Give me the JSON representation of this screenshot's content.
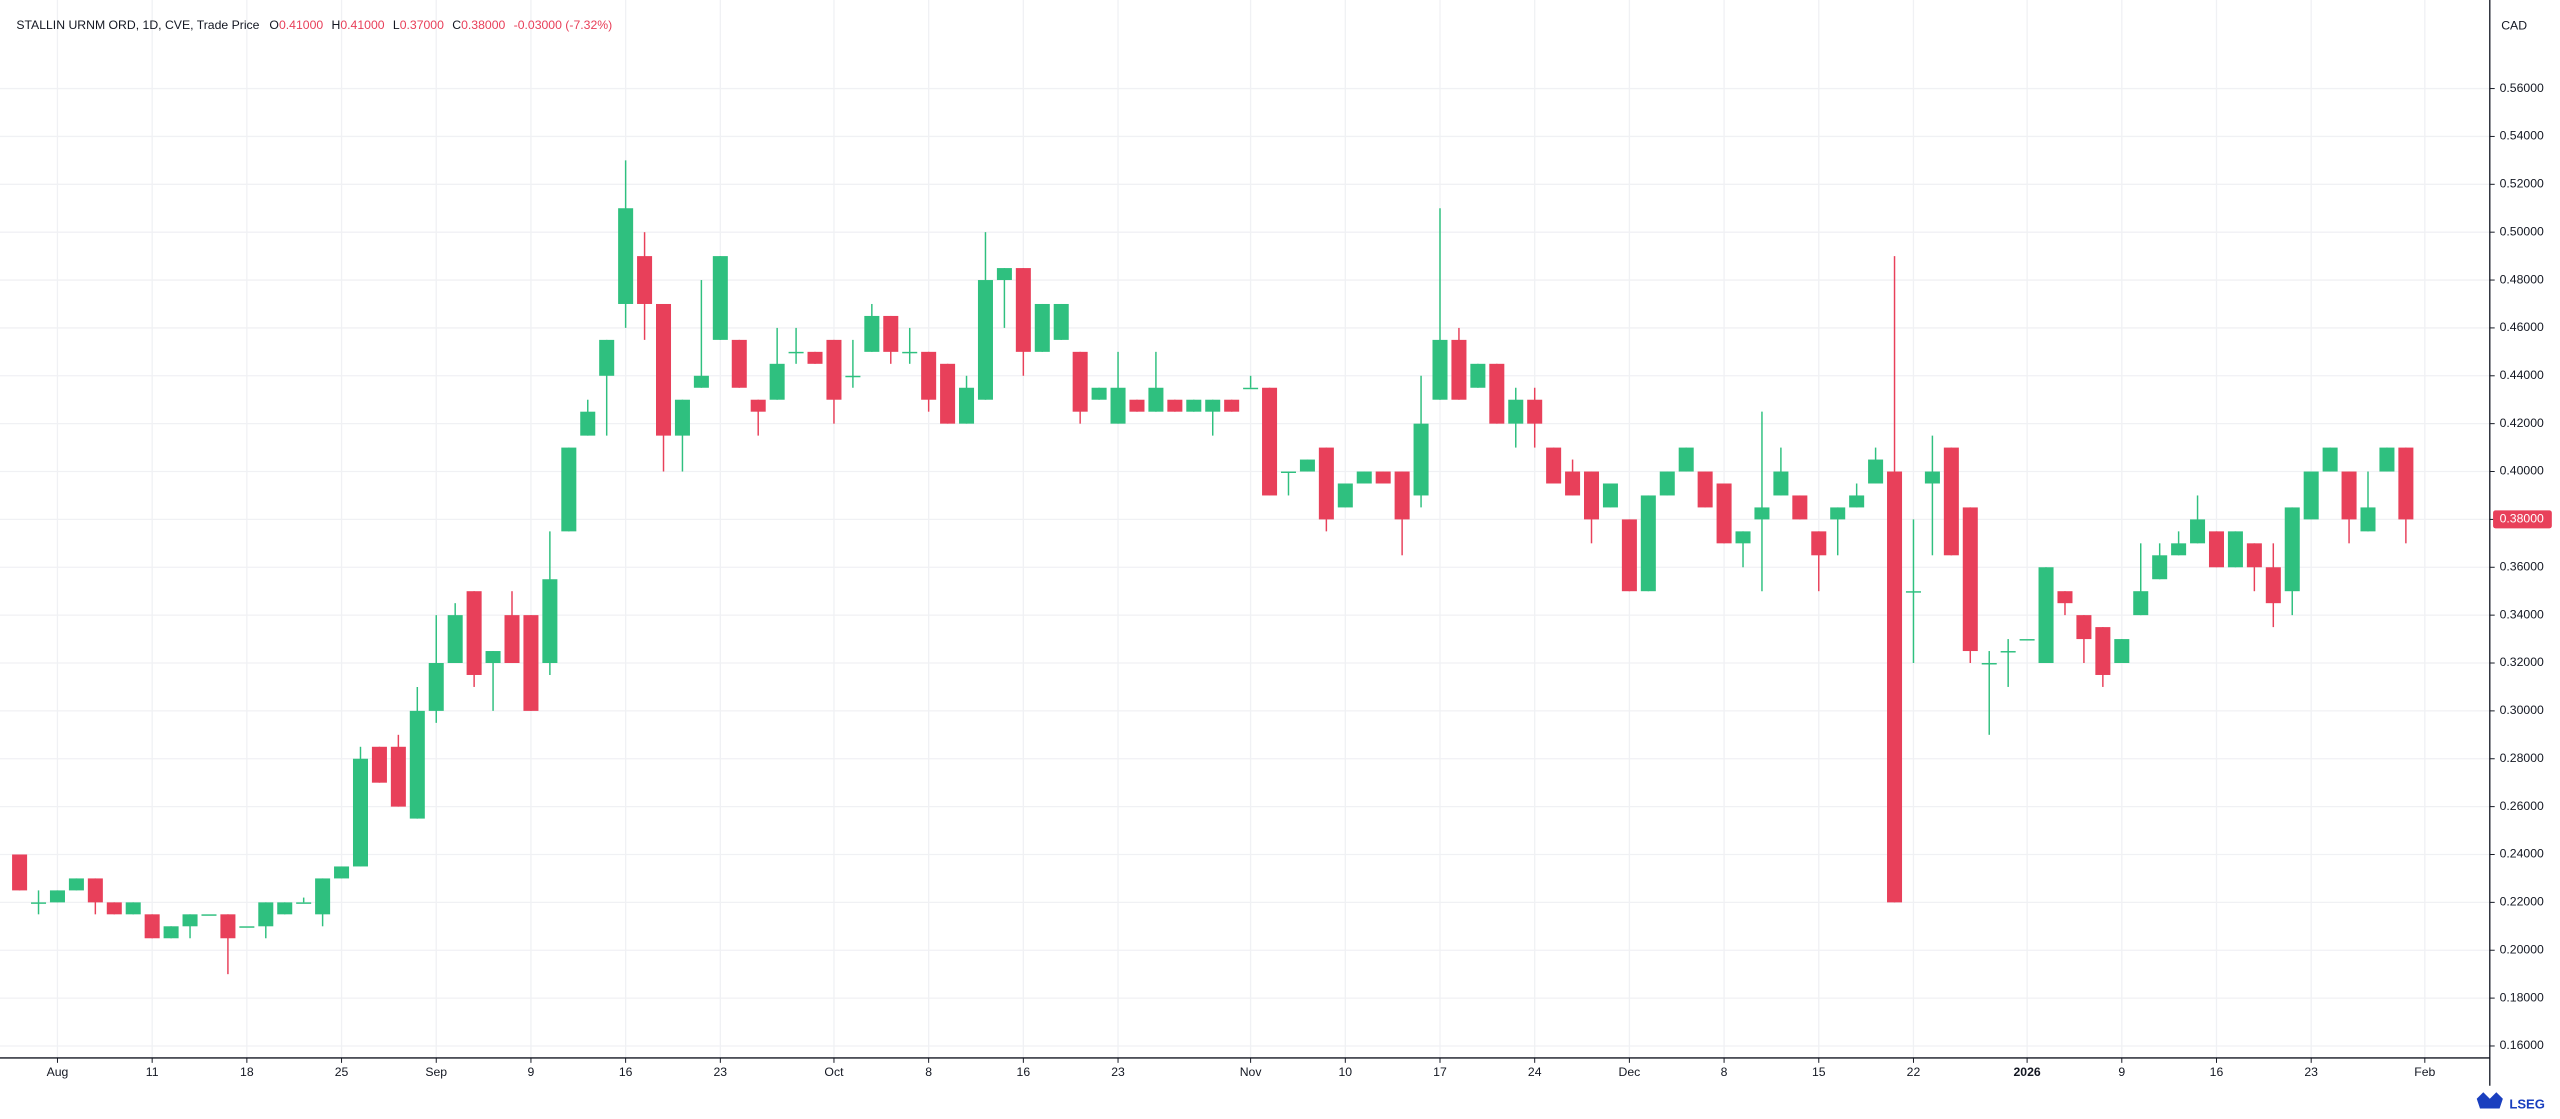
{
  "header": {
    "title": "STALLIN URNM ORD, 1D, CVE, Trade Price",
    "fields": [
      {
        "label": "O",
        "value": "0.41000"
      },
      {
        "label": "H",
        "value": "0.41000"
      },
      {
        "label": "L",
        "value": "0.37000"
      },
      {
        "label": "C",
        "value": "0.38000"
      }
    ],
    "change": "-0.03000 (-7.32%)",
    "currency": "CAD",
    "logo": "LSEG"
  },
  "chart_data": {
    "type": "candlestick",
    "up_color": "#2fc07f",
    "down_color": "#e8405a",
    "grid": true,
    "ylim": [
      0.155,
      0.597
    ],
    "yticks": [
      {
        "value": 0.16,
        "label": "0.16000"
      },
      {
        "value": 0.18,
        "label": "0.18000"
      },
      {
        "value": 0.2,
        "label": "0.20000"
      },
      {
        "value": 0.22,
        "label": "0.22000"
      },
      {
        "value": 0.24,
        "label": "0.24000"
      },
      {
        "value": 0.26,
        "label": "0.26000"
      },
      {
        "value": 0.28,
        "label": "0.28000"
      },
      {
        "value": 0.3,
        "label": "0.30000"
      },
      {
        "value": 0.32,
        "label": "0.32000"
      },
      {
        "value": 0.34,
        "label": "0.34000"
      },
      {
        "value": 0.36,
        "label": "0.36000"
      },
      {
        "value": 0.38,
        "label": "0.38000"
      },
      {
        "value": 0.4,
        "label": "0.40000"
      },
      {
        "value": 0.42,
        "label": "0.42000"
      },
      {
        "value": 0.44,
        "label": "0.44000"
      },
      {
        "value": 0.46,
        "label": "0.46000"
      },
      {
        "value": 0.48,
        "label": "0.48000"
      },
      {
        "value": 0.5,
        "label": "0.50000"
      },
      {
        "value": 0.52,
        "label": "0.52000"
      },
      {
        "value": 0.54,
        "label": "0.54000"
      },
      {
        "value": 0.56,
        "label": "0.56000"
      }
    ],
    "xticks": [
      {
        "value": 2,
        "label": "Aug"
      },
      {
        "value": 7,
        "label": "11"
      },
      {
        "value": 12,
        "label": "18"
      },
      {
        "value": 17,
        "label": "25"
      },
      {
        "value": 22,
        "label": "Sep"
      },
      {
        "value": 27,
        "label": "9"
      },
      {
        "value": 32,
        "label": "16"
      },
      {
        "value": 37,
        "label": "23"
      },
      {
        "value": 43,
        "label": "Oct"
      },
      {
        "value": 48,
        "label": "8"
      },
      {
        "value": 53,
        "label": "16"
      },
      {
        "value": 58,
        "label": "23"
      },
      {
        "value": 65,
        "label": "Nov"
      },
      {
        "value": 70,
        "label": "10"
      },
      {
        "value": 75,
        "label": "17"
      },
      {
        "value": 80,
        "label": "24"
      },
      {
        "value": 85,
        "label": "Dec"
      },
      {
        "value": 90,
        "label": "8"
      },
      {
        "value": 95,
        "label": "15"
      },
      {
        "value": 100,
        "label": "22"
      },
      {
        "value": 106,
        "label": "2026"
      },
      {
        "value": 111,
        "label": "9"
      },
      {
        "value": 116,
        "label": "16"
      },
      {
        "value": 121,
        "label": "23"
      },
      {
        "value": 127,
        "label": "Feb"
      }
    ],
    "last_label": {
      "value": 0.38,
      "label": "0.38000"
    },
    "open": [
      0.24,
      0.22,
      0.22,
      0.225,
      0.23,
      0.22,
      0.215,
      0.215,
      0.205,
      0.21,
      0.215,
      0.215,
      0.21,
      0.21,
      0.215,
      0.22,
      0.215,
      0.23,
      0.235,
      0.285,
      0.285,
      0.255,
      0.3,
      0.32,
      0.35,
      0.32,
      0.34,
      0.34,
      0.32,
      0.375,
      0.415,
      0.44,
      0.47,
      0.49,
      0.47,
      0.415,
      0.435,
      0.455,
      0.455,
      0.43,
      0.43,
      0.45,
      0.45,
      0.455,
      0.44,
      0.45,
      0.465,
      0.45,
      0.45,
      0.445,
      0.42,
      0.43,
      0.48,
      0.485,
      0.45,
      0.455,
      0.45,
      0.43,
      0.42,
      0.43,
      0.425,
      0.43,
      0.425,
      0.425,
      0.43,
      0.435,
      0.435,
      0.4,
      0.4,
      0.41,
      0.385,
      0.395,
      0.4,
      0.4,
      0.39,
      0.43,
      0.455,
      0.435,
      0.445,
      0.42,
      0.43,
      0.41,
      0.4,
      0.4,
      0.385,
      0.38,
      0.35,
      0.39,
      0.4,
      0.4,
      0.395,
      0.37,
      0.38,
      0.39,
      0.39,
      0.375,
      0.38,
      0.385,
      0.395,
      0.4,
      0.35,
      0.395,
      0.41,
      0.385,
      0.32,
      0.325,
      0.33,
      0.32,
      0.35,
      0.34,
      0.335,
      0.32,
      0.34,
      0.355,
      0.365,
      0.37,
      0.375,
      0.36,
      0.37,
      0.36,
      0.35,
      0.38,
      0.4,
      0.4,
      0.375,
      0.4,
      0.41
    ],
    "high": [
      0.24,
      0.225,
      0.225,
      0.23,
      0.23,
      0.22,
      0.22,
      0.215,
      0.21,
      0.215,
      0.215,
      0.215,
      0.21,
      0.22,
      0.22,
      0.222,
      0.23,
      0.235,
      0.285,
      0.285,
      0.29,
      0.31,
      0.34,
      0.345,
      0.35,
      0.325,
      0.35,
      0.34,
      0.375,
      0.41,
      0.43,
      0.455,
      0.53,
      0.5,
      0.47,
      0.43,
      0.48,
      0.49,
      0.455,
      0.43,
      0.46,
      0.46,
      0.45,
      0.455,
      0.455,
      0.47,
      0.465,
      0.46,
      0.45,
      0.445,
      0.44,
      0.5,
      0.485,
      0.485,
      0.47,
      0.47,
      0.45,
      0.435,
      0.45,
      0.43,
      0.45,
      0.43,
      0.43,
      0.43,
      0.43,
      0.44,
      0.435,
      0.4,
      0.405,
      0.41,
      0.395,
      0.4,
      0.4,
      0.4,
      0.44,
      0.51,
      0.46,
      0.445,
      0.445,
      0.435,
      0.435,
      0.41,
      0.405,
      0.4,
      0.395,
      0.38,
      0.39,
      0.4,
      0.41,
      0.4,
      0.395,
      0.375,
      0.425,
      0.41,
      0.39,
      0.375,
      0.385,
      0.395,
      0.41,
      0.49,
      0.38,
      0.415,
      0.41,
      0.385,
      0.325,
      0.33,
      0.33,
      0.36,
      0.35,
      0.34,
      0.335,
      0.33,
      0.37,
      0.37,
      0.375,
      0.39,
      0.375,
      0.375,
      0.37,
      0.37,
      0.385,
      0.4,
      0.41,
      0.4,
      0.4,
      0.41,
      0.41
    ],
    "low": [
      0.225,
      0.215,
      0.22,
      0.225,
      0.215,
      0.215,
      0.215,
      0.205,
      0.205,
      0.205,
      0.215,
      0.19,
      0.21,
      0.205,
      0.215,
      0.22,
      0.21,
      0.23,
      0.235,
      0.27,
      0.26,
      0.255,
      0.295,
      0.32,
      0.31,
      0.3,
      0.32,
      0.3,
      0.315,
      0.375,
      0.415,
      0.415,
      0.46,
      0.455,
      0.4,
      0.4,
      0.435,
      0.455,
      0.435,
      0.415,
      0.43,
      0.445,
      0.445,
      0.42,
      0.435,
      0.45,
      0.445,
      0.445,
      0.425,
      0.42,
      0.42,
      0.43,
      0.46,
      0.44,
      0.45,
      0.455,
      0.42,
      0.43,
      0.42,
      0.425,
      0.425,
      0.425,
      0.425,
      0.415,
      0.425,
      0.435,
      0.39,
      0.39,
      0.4,
      0.375,
      0.385,
      0.395,
      0.395,
      0.365,
      0.385,
      0.43,
      0.43,
      0.435,
      0.42,
      0.41,
      0.41,
      0.395,
      0.39,
      0.37,
      0.385,
      0.35,
      0.35,
      0.39,
      0.4,
      0.385,
      0.37,
      0.36,
      0.35,
      0.39,
      0.38,
      0.35,
      0.365,
      0.385,
      0.395,
      0.22,
      0.32,
      0.365,
      0.365,
      0.32,
      0.29,
      0.31,
      0.33,
      0.32,
      0.34,
      0.32,
      0.31,
      0.32,
      0.34,
      0.355,
      0.365,
      0.37,
      0.36,
      0.36,
      0.35,
      0.335,
      0.34,
      0.38,
      0.4,
      0.37,
      0.375,
      0.4,
      0.37
    ],
    "close": [
      0.225,
      0.22,
      0.225,
      0.23,
      0.22,
      0.215,
      0.22,
      0.205,
      0.21,
      0.215,
      0.215,
      0.205,
      0.21,
      0.22,
      0.22,
      0.22,
      0.23,
      0.235,
      0.28,
      0.27,
      0.26,
      0.3,
      0.32,
      0.34,
      0.315,
      0.325,
      0.32,
      0.3,
      0.355,
      0.41,
      0.425,
      0.455,
      0.51,
      0.47,
      0.415,
      0.43,
      0.44,
      0.49,
      0.435,
      0.425,
      0.445,
      0.45,
      0.445,
      0.43,
      0.44,
      0.465,
      0.45,
      0.45,
      0.43,
      0.42,
      0.435,
      0.48,
      0.485,
      0.45,
      0.47,
      0.47,
      0.425,
      0.435,
      0.435,
      0.425,
      0.435,
      0.425,
      0.43,
      0.43,
      0.425,
      0.435,
      0.39,
      0.4,
      0.405,
      0.38,
      0.395,
      0.4,
      0.395,
      0.38,
      0.42,
      0.455,
      0.43,
      0.445,
      0.42,
      0.43,
      0.42,
      0.395,
      0.39,
      0.38,
      0.395,
      0.35,
      0.39,
      0.4,
      0.41,
      0.385,
      0.37,
      0.375,
      0.385,
      0.4,
      0.38,
      0.365,
      0.385,
      0.39,
      0.405,
      0.22,
      0.35,
      0.4,
      0.365,
      0.325,
      0.32,
      0.325,
      0.33,
      0.36,
      0.345,
      0.33,
      0.315,
      0.33,
      0.35,
      0.365,
      0.37,
      0.38,
      0.36,
      0.375,
      0.36,
      0.345,
      0.385,
      0.4,
      0.41,
      0.38,
      0.385,
      0.41,
      0.38
    ]
  }
}
